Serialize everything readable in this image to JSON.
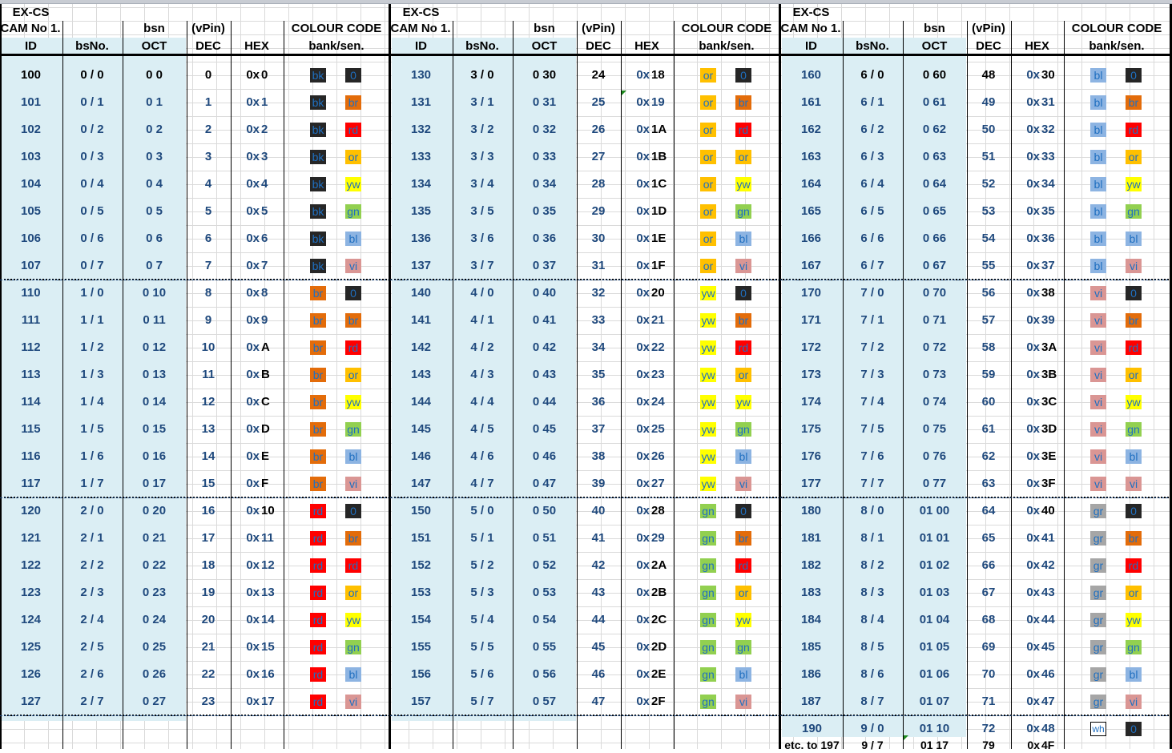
{
  "header": {
    "title": "EX-CS",
    "cam": "CAM No 1.",
    "bsn": "bsn",
    "vpin": "(vPin)",
    "colour_code": "COLOUR CODE",
    "columns": [
      "ID",
      "bsNo.",
      "OCT",
      "DEC",
      "HEX",
      "bank/sen."
    ]
  },
  "colors": {
    "bk": "#262626",
    "br": "#e36c0a",
    "rd": "#ff0000",
    "or": "#ffc000",
    "yw": "#ffff00",
    "gn": "#92d050",
    "bl": "#8db4e2",
    "vi": "#da9694",
    "gr": "#a6a6a6",
    "wh": "#ffffff",
    "header_shade": "#dbeef4",
    "text_blue": "#1f497d"
  },
  "sections": [
    {
      "rows": [
        {
          "id": "100",
          "bs": "0 / 0",
          "oct": "0  0",
          "dec": "0",
          "hex": "0",
          "bank": "bk",
          "sen": "0"
        },
        {
          "id": "101",
          "bs": "0 / 1",
          "oct": "0  1",
          "dec": "1",
          "hex": "1",
          "bank": "bk",
          "sen": "br"
        },
        {
          "id": "102",
          "bs": "0 / 2",
          "oct": "0  2",
          "dec": "2",
          "hex": "2",
          "bank": "bk",
          "sen": "rd"
        },
        {
          "id": "103",
          "bs": "0 / 3",
          "oct": "0  3",
          "dec": "3",
          "hex": "3",
          "bank": "bk",
          "sen": "or"
        },
        {
          "id": "104",
          "bs": "0 / 4",
          "oct": "0  4",
          "dec": "4",
          "hex": "4",
          "bank": "bk",
          "sen": "yw"
        },
        {
          "id": "105",
          "bs": "0 / 5",
          "oct": "0  5",
          "dec": "5",
          "hex": "5",
          "bank": "bk",
          "sen": "gn"
        },
        {
          "id": "106",
          "bs": "0 / 6",
          "oct": "0  6",
          "dec": "6",
          "hex": "6",
          "bank": "bk",
          "sen": "bl"
        },
        {
          "id": "107",
          "bs": "0 / 7",
          "oct": "0  7",
          "dec": "7",
          "hex": "7",
          "bank": "bk",
          "sen": "vi"
        },
        {
          "id": "110",
          "bs": "1 / 0",
          "oct": "0  10",
          "dec": "8",
          "hex": "8",
          "bank": "br",
          "sen": "0"
        },
        {
          "id": "111",
          "bs": "1 / 1",
          "oct": "0  11",
          "dec": "9",
          "hex": "9",
          "bank": "br",
          "sen": "br"
        },
        {
          "id": "112",
          "bs": "1 / 2",
          "oct": "0  12",
          "dec": "10",
          "hex": "A",
          "bank": "br",
          "sen": "rd"
        },
        {
          "id": "113",
          "bs": "1 / 3",
          "oct": "0  13",
          "dec": "11",
          "hex": "B",
          "bank": "br",
          "sen": "or"
        },
        {
          "id": "114",
          "bs": "1 / 4",
          "oct": "0  14",
          "dec": "12",
          "hex": "C",
          "bank": "br",
          "sen": "yw"
        },
        {
          "id": "115",
          "bs": "1 / 5",
          "oct": "0  15",
          "dec": "13",
          "hex": "D",
          "bank": "br",
          "sen": "gn"
        },
        {
          "id": "116",
          "bs": "1 / 6",
          "oct": "0  16",
          "dec": "14",
          "hex": "E",
          "bank": "br",
          "sen": "bl"
        },
        {
          "id": "117",
          "bs": "1 / 7",
          "oct": "0  17",
          "dec": "15",
          "hex": "F",
          "bank": "br",
          "sen": "vi"
        },
        {
          "id": "120",
          "bs": "2 / 0",
          "oct": "0  20",
          "dec": "16",
          "hex": "10",
          "bank": "rd",
          "sen": "0"
        },
        {
          "id": "121",
          "bs": "2 / 1",
          "oct": "0  21",
          "dec": "17",
          "hex": "11",
          "bank": "rd",
          "sen": "br"
        },
        {
          "id": "122",
          "bs": "2 / 2",
          "oct": "0  22",
          "dec": "18",
          "hex": "12",
          "bank": "rd",
          "sen": "rd"
        },
        {
          "id": "123",
          "bs": "2 / 3",
          "oct": "0  23",
          "dec": "19",
          "hex": "13",
          "bank": "rd",
          "sen": "or"
        },
        {
          "id": "124",
          "bs": "2 / 4",
          "oct": "0  24",
          "dec": "20",
          "hex": "14",
          "bank": "rd",
          "sen": "yw"
        },
        {
          "id": "125",
          "bs": "2 / 5",
          "oct": "0  25",
          "dec": "21",
          "hex": "15",
          "bank": "rd",
          "sen": "gn"
        },
        {
          "id": "126",
          "bs": "2 / 6",
          "oct": "0  26",
          "dec": "22",
          "hex": "16",
          "bank": "rd",
          "sen": "bl"
        },
        {
          "id": "127",
          "bs": "2 / 7",
          "oct": "0  27",
          "dec": "23",
          "hex": "17",
          "bank": "rd",
          "sen": "vi"
        }
      ]
    },
    {
      "rows": [
        {
          "id": "130",
          "bs": "3 / 0",
          "oct": "0  30",
          "dec": "24",
          "hex": "18",
          "bank": "or",
          "sen": "0"
        },
        {
          "id": "131",
          "bs": "3 / 1",
          "oct": "0  31",
          "dec": "25",
          "hex": "19",
          "bank": "or",
          "sen": "br"
        },
        {
          "id": "132",
          "bs": "3 / 2",
          "oct": "0  32",
          "dec": "26",
          "hex": "1A",
          "bank": "or",
          "sen": "rd"
        },
        {
          "id": "133",
          "bs": "3 / 3",
          "oct": "0  33",
          "dec": "27",
          "hex": "1B",
          "bank": "or",
          "sen": "or"
        },
        {
          "id": "134",
          "bs": "3 / 4",
          "oct": "0  34",
          "dec": "28",
          "hex": "1C",
          "bank": "or",
          "sen": "yw"
        },
        {
          "id": "135",
          "bs": "3 / 5",
          "oct": "0  35",
          "dec": "29",
          "hex": "1D",
          "bank": "or",
          "sen": "gn"
        },
        {
          "id": "136",
          "bs": "3 / 6",
          "oct": "0  36",
          "dec": "30",
          "hex": "1E",
          "bank": "or",
          "sen": "bl"
        },
        {
          "id": "137",
          "bs": "3 / 7",
          "oct": "0  37",
          "dec": "31",
          "hex": "1F",
          "bank": "or",
          "sen": "vi"
        },
        {
          "id": "140",
          "bs": "4 / 0",
          "oct": "0  40",
          "dec": "32",
          "hex": "20",
          "bank": "yw",
          "sen": "0"
        },
        {
          "id": "141",
          "bs": "4 / 1",
          "oct": "0  41",
          "dec": "33",
          "hex": "21",
          "bank": "yw",
          "sen": "br"
        },
        {
          "id": "142",
          "bs": "4 / 2",
          "oct": "0  42",
          "dec": "34",
          "hex": "22",
          "bank": "yw",
          "sen": "rd"
        },
        {
          "id": "143",
          "bs": "4 / 3",
          "oct": "0  43",
          "dec": "35",
          "hex": "23",
          "bank": "yw",
          "sen": "or"
        },
        {
          "id": "144",
          "bs": "4 / 4",
          "oct": "0  44",
          "dec": "36",
          "hex": "24",
          "bank": "yw",
          "sen": "yw"
        },
        {
          "id": "145",
          "bs": "4 / 5",
          "oct": "0  45",
          "dec": "37",
          "hex": "25",
          "bank": "yw",
          "sen": "gn"
        },
        {
          "id": "146",
          "bs": "4 / 6",
          "oct": "0  46",
          "dec": "38",
          "hex": "26",
          "bank": "yw",
          "sen": "bl"
        },
        {
          "id": "147",
          "bs": "4 / 7",
          "oct": "0  47",
          "dec": "39",
          "hex": "27",
          "bank": "yw",
          "sen": "vi"
        },
        {
          "id": "150",
          "bs": "5 / 0",
          "oct": "0  50",
          "dec": "40",
          "hex": "28",
          "bank": "gn",
          "sen": "0"
        },
        {
          "id": "151",
          "bs": "5 / 1",
          "oct": "0  51",
          "dec": "41",
          "hex": "29",
          "bank": "gn",
          "sen": "br"
        },
        {
          "id": "152",
          "bs": "5 / 2",
          "oct": "0  52",
          "dec": "42",
          "hex": "2A",
          "bank": "gn",
          "sen": "rd"
        },
        {
          "id": "153",
          "bs": "5 / 3",
          "oct": "0  53",
          "dec": "43",
          "hex": "2B",
          "bank": "gn",
          "sen": "or"
        },
        {
          "id": "154",
          "bs": "5 / 4",
          "oct": "0  54",
          "dec": "44",
          "hex": "2C",
          "bank": "gn",
          "sen": "yw"
        },
        {
          "id": "155",
          "bs": "5 / 5",
          "oct": "0  55",
          "dec": "45",
          "hex": "2D",
          "bank": "gn",
          "sen": "gn"
        },
        {
          "id": "156",
          "bs": "5 / 6",
          "oct": "0  56",
          "dec": "46",
          "hex": "2E",
          "bank": "gn",
          "sen": "bl"
        },
        {
          "id": "157",
          "bs": "5 / 7",
          "oct": "0  57",
          "dec": "47",
          "hex": "2F",
          "bank": "gn",
          "sen": "vi"
        }
      ]
    },
    {
      "rows": [
        {
          "id": "160",
          "bs": "6 / 0",
          "oct": "0  60",
          "dec": "48",
          "hex": "30",
          "bank": "bl",
          "sen": "0"
        },
        {
          "id": "161",
          "bs": "6 / 1",
          "oct": "0  61",
          "dec": "49",
          "hex": "31",
          "bank": "bl",
          "sen": "br"
        },
        {
          "id": "162",
          "bs": "6 / 2",
          "oct": "0  62",
          "dec": "50",
          "hex": "32",
          "bank": "bl",
          "sen": "rd"
        },
        {
          "id": "163",
          "bs": "6 / 3",
          "oct": "0  63",
          "dec": "51",
          "hex": "33",
          "bank": "bl",
          "sen": "or"
        },
        {
          "id": "164",
          "bs": "6 / 4",
          "oct": "0  64",
          "dec": "52",
          "hex": "34",
          "bank": "bl",
          "sen": "yw"
        },
        {
          "id": "165",
          "bs": "6 / 5",
          "oct": "0  65",
          "dec": "53",
          "hex": "35",
          "bank": "bl",
          "sen": "gn"
        },
        {
          "id": "166",
          "bs": "6 / 6",
          "oct": "0  66",
          "dec": "54",
          "hex": "36",
          "bank": "bl",
          "sen": "bl"
        },
        {
          "id": "167",
          "bs": "6 / 7",
          "oct": "0  67",
          "dec": "55",
          "hex": "37",
          "bank": "bl",
          "sen": "vi"
        },
        {
          "id": "170",
          "bs": "7 / 0",
          "oct": "0  70",
          "dec": "56",
          "hex": "38",
          "bank": "vi",
          "sen": "0"
        },
        {
          "id": "171",
          "bs": "7 / 1",
          "oct": "0  71",
          "dec": "57",
          "hex": "39",
          "bank": "vi",
          "sen": "br"
        },
        {
          "id": "172",
          "bs": "7 / 2",
          "oct": "0  72",
          "dec": "58",
          "hex": "3A",
          "bank": "vi",
          "sen": "rd"
        },
        {
          "id": "173",
          "bs": "7 / 3",
          "oct": "0  73",
          "dec": "59",
          "hex": "3B",
          "bank": "vi",
          "sen": "or"
        },
        {
          "id": "174",
          "bs": "7 / 4",
          "oct": "0  74",
          "dec": "60",
          "hex": "3C",
          "bank": "vi",
          "sen": "yw"
        },
        {
          "id": "175",
          "bs": "7 / 5",
          "oct": "0  75",
          "dec": "61",
          "hex": "3D",
          "bank": "vi",
          "sen": "gn"
        },
        {
          "id": "176",
          "bs": "7 / 6",
          "oct": "0  76",
          "dec": "62",
          "hex": "3E",
          "bank": "vi",
          "sen": "bl"
        },
        {
          "id": "177",
          "bs": "7 / 7",
          "oct": "0  77",
          "dec": "63",
          "hex": "3F",
          "bank": "vi",
          "sen": "vi"
        },
        {
          "id": "180",
          "bs": "8 / 0",
          "oct": "01  00",
          "dec": "64",
          "hex": "40",
          "bank": "gr",
          "sen": "0"
        },
        {
          "id": "181",
          "bs": "8 / 1",
          "oct": "01  01",
          "dec": "65",
          "hex": "41",
          "bank": "gr",
          "sen": "br"
        },
        {
          "id": "182",
          "bs": "8 / 2",
          "oct": "01  02",
          "dec": "66",
          "hex": "42",
          "bank": "gr",
          "sen": "rd"
        },
        {
          "id": "183",
          "bs": "8 / 3",
          "oct": "01  03",
          "dec": "67",
          "hex": "43",
          "bank": "gr",
          "sen": "or"
        },
        {
          "id": "184",
          "bs": "8 / 4",
          "oct": "01  04",
          "dec": "68",
          "hex": "44",
          "bank": "gr",
          "sen": "yw"
        },
        {
          "id": "185",
          "bs": "8 / 5",
          "oct": "01  05",
          "dec": "69",
          "hex": "45",
          "bank": "gr",
          "sen": "gn"
        },
        {
          "id": "186",
          "bs": "8 / 6",
          "oct": "01  06",
          "dec": "70",
          "hex": "46",
          "bank": "gr",
          "sen": "bl"
        },
        {
          "id": "187",
          "bs": "8 / 7",
          "oct": "01  07",
          "dec": "71",
          "hex": "47",
          "bank": "gr",
          "sen": "vi"
        }
      ],
      "extra": [
        {
          "id": "190",
          "bs": "9 / 0",
          "oct": "01  10",
          "dec": "72",
          "hex": "48",
          "bank": "wh",
          "sen": "0"
        },
        {
          "id": "etc. to 197",
          "bs": "9 / 7",
          "oct": "01  17",
          "dec": "79",
          "hex": "4F"
        }
      ]
    }
  ],
  "hex_prefix": "0x"
}
